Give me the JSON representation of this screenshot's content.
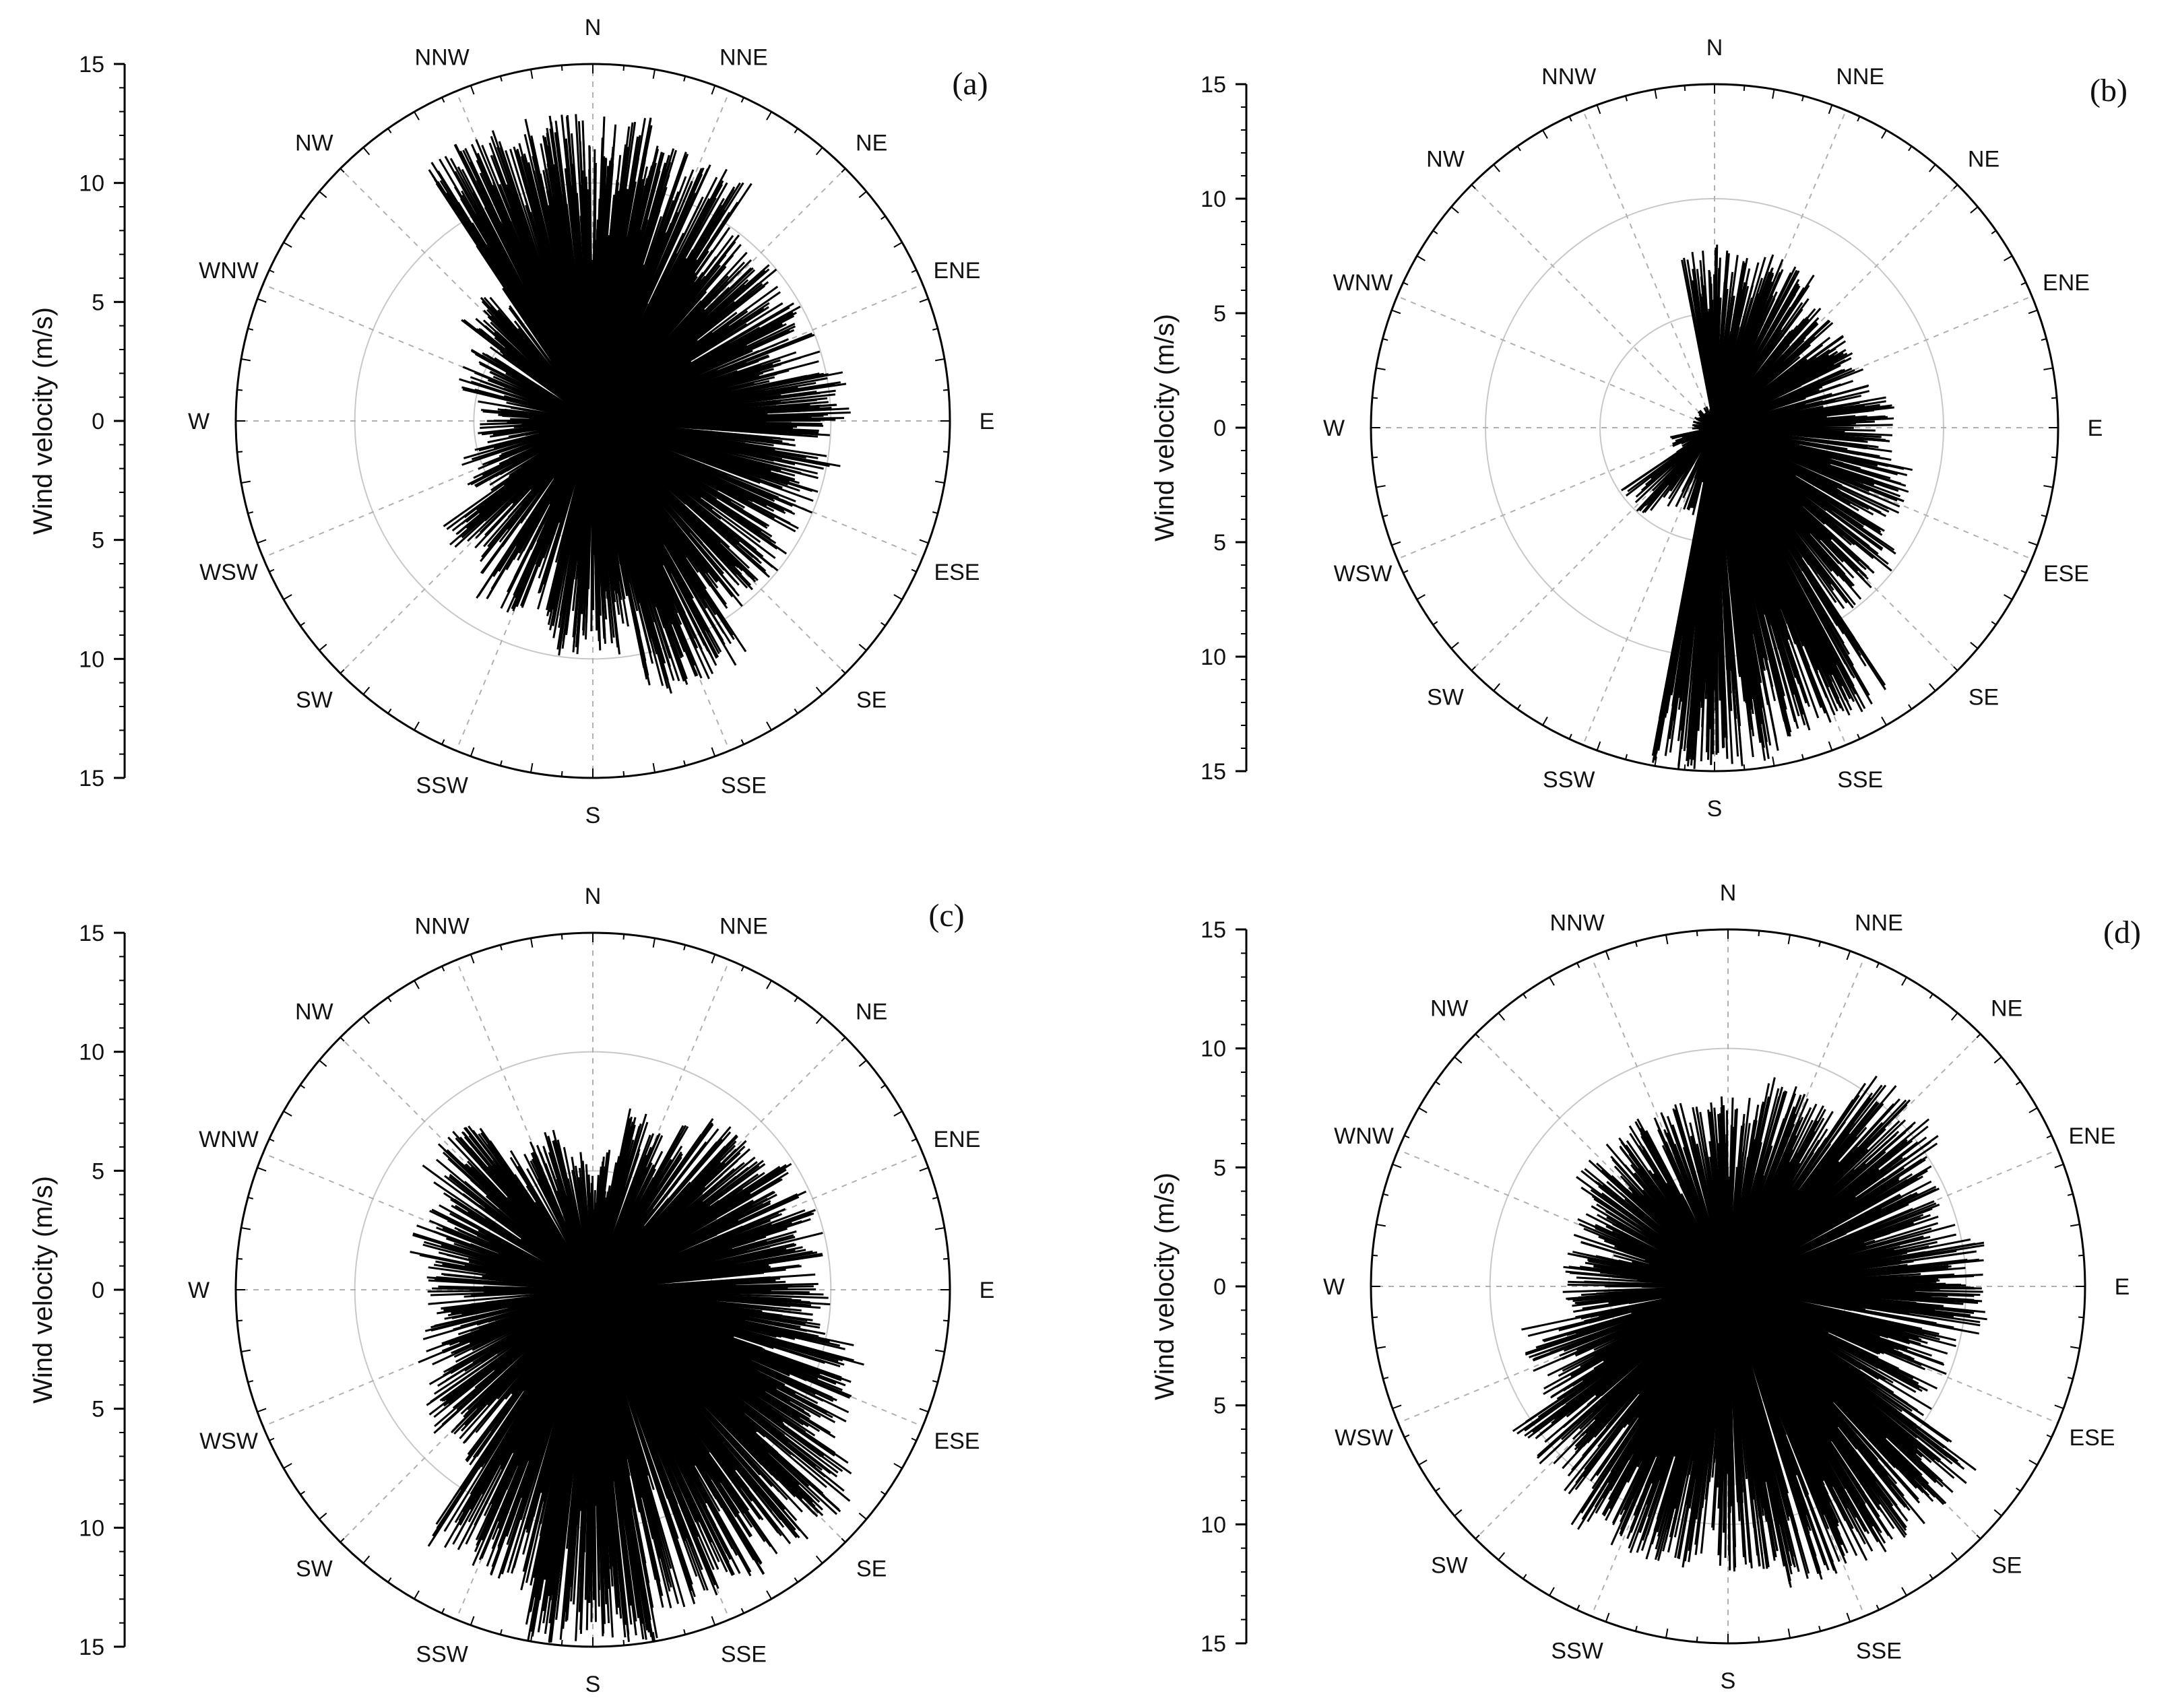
{
  "chart_data": [
    {
      "type": "wind-rose",
      "panel_label": "(a)",
      "ylabel": "Wind velocity (m/s)",
      "rlim": [
        0,
        15
      ],
      "r_ticks": [
        15,
        10,
        5,
        0,
        5,
        10,
        15
      ],
      "grid": true,
      "directions": [
        "N",
        "NNE",
        "NE",
        "ENE",
        "E",
        "ESE",
        "SE",
        "SSE",
        "S",
        "SSW",
        "SW",
        "WSW",
        "W",
        "WNW",
        "NW",
        "NNW"
      ],
      "color": "#000000",
      "sectors": [
        {
          "direction": "N",
          "max_speed": 13
        },
        {
          "direction": "NNE",
          "max_speed": 12
        },
        {
          "direction": "NE",
          "max_speed": 10
        },
        {
          "direction": "ENE",
          "max_speed": 10
        },
        {
          "direction": "E",
          "max_speed": 11
        },
        {
          "direction": "ESE",
          "max_speed": 10
        },
        {
          "direction": "SE",
          "max_speed": 10
        },
        {
          "direction": "SSE",
          "max_speed": 12
        },
        {
          "direction": "S",
          "max_speed": 10
        },
        {
          "direction": "SSW",
          "max_speed": 9
        },
        {
          "direction": "SW",
          "max_speed": 8
        },
        {
          "direction": "WSW",
          "max_speed": 6
        },
        {
          "direction": "W",
          "max_speed": 5
        },
        {
          "direction": "WNW",
          "max_speed": 6
        },
        {
          "direction": "NW",
          "max_speed": 7
        },
        {
          "direction": "NNW",
          "max_speed": 13
        }
      ]
    },
    {
      "type": "wind-rose",
      "panel_label": "(b)",
      "ylabel": "Wind velocity (m/s)",
      "rlim": [
        0,
        15
      ],
      "r_ticks": [
        15,
        10,
        5,
        0,
        5,
        10,
        15
      ],
      "grid": true,
      "directions": [
        "N",
        "NNE",
        "NE",
        "ENE",
        "E",
        "ESE",
        "SE",
        "SSE",
        "S",
        "SSW",
        "SW",
        "WSW",
        "W",
        "WNW",
        "NW",
        "NNW"
      ],
      "color": "#000000",
      "sectors": [
        {
          "direction": "N",
          "max_speed": 8
        },
        {
          "direction": "NNE",
          "max_speed": 8
        },
        {
          "direction": "NE",
          "max_speed": 7
        },
        {
          "direction": "ENE",
          "max_speed": 7
        },
        {
          "direction": "E",
          "max_speed": 8
        },
        {
          "direction": "ESE",
          "max_speed": 9
        },
        {
          "direction": "SE",
          "max_speed": 10
        },
        {
          "direction": "SSE",
          "max_speed": 14
        },
        {
          "direction": "S",
          "max_speed": 15
        },
        {
          "direction": "SSW",
          "max_speed": 4
        },
        {
          "direction": "SW",
          "max_speed": 5
        },
        {
          "direction": "WSW",
          "max_speed": 2
        },
        {
          "direction": "W",
          "max_speed": 1
        },
        {
          "direction": "WNW",
          "max_speed": 1
        },
        {
          "direction": "NW",
          "max_speed": 1
        },
        {
          "direction": "NNW",
          "max_speed": 1
        }
      ]
    },
    {
      "type": "wind-rose",
      "panel_label": "(c)",
      "ylabel": "Wind velocity (m/s)",
      "rlim": [
        0,
        15
      ],
      "r_ticks": [
        15,
        10,
        5,
        0,
        5,
        10,
        15
      ],
      "grid": true,
      "directions": [
        "N",
        "NNE",
        "NE",
        "ENE",
        "E",
        "ESE",
        "SE",
        "SSE",
        "S",
        "SSW",
        "SW",
        "WSW",
        "W",
        "WNW",
        "NW",
        "NNW"
      ],
      "color": "#000000",
      "sectors": [
        {
          "direction": "N",
          "max_speed": 6
        },
        {
          "direction": "NNE",
          "max_speed": 8
        },
        {
          "direction": "NE",
          "max_speed": 9
        },
        {
          "direction": "ENE",
          "max_speed": 10
        },
        {
          "direction": "E",
          "max_speed": 10
        },
        {
          "direction": "ESE",
          "max_speed": 12
        },
        {
          "direction": "SE",
          "max_speed": 14
        },
        {
          "direction": "SSE",
          "max_speed": 14
        },
        {
          "direction": "S",
          "max_speed": 15
        },
        {
          "direction": "SSW",
          "max_speed": 13
        },
        {
          "direction": "SW",
          "max_speed": 9
        },
        {
          "direction": "WSW",
          "max_speed": 8
        },
        {
          "direction": "W",
          "max_speed": 7
        },
        {
          "direction": "WNW",
          "max_speed": 8
        },
        {
          "direction": "NW",
          "max_speed": 9
        },
        {
          "direction": "NNW",
          "max_speed": 7
        }
      ]
    },
    {
      "type": "wind-rose",
      "panel_label": "(d)",
      "ylabel": "Wind velocity (m/s)",
      "rlim": [
        0,
        15
      ],
      "r_ticks": [
        15,
        10,
        5,
        0,
        5,
        10,
        15
      ],
      "grid": true,
      "directions": [
        "N",
        "NNE",
        "NE",
        "ENE",
        "E",
        "ESE",
        "SE",
        "SSE",
        "S",
        "SSW",
        "SW",
        "WSW",
        "W",
        "WNW",
        "NW",
        "NNW"
      ],
      "color": "#000000",
      "sectors": [
        {
          "direction": "N",
          "max_speed": 8
        },
        {
          "direction": "NNE",
          "max_speed": 9
        },
        {
          "direction": "NE",
          "max_speed": 11
        },
        {
          "direction": "ENE",
          "max_speed": 10
        },
        {
          "direction": "E",
          "max_speed": 11
        },
        {
          "direction": "ESE",
          "max_speed": 10
        },
        {
          "direction": "SE",
          "max_speed": 13
        },
        {
          "direction": "SSE",
          "max_speed": 13
        },
        {
          "direction": "S",
          "max_speed": 12
        },
        {
          "direction": "SSW",
          "max_speed": 12
        },
        {
          "direction": "SW",
          "max_speed": 11
        },
        {
          "direction": "WSW",
          "max_speed": 9
        },
        {
          "direction": "W",
          "max_speed": 7
        },
        {
          "direction": "WNW",
          "max_speed": 7
        },
        {
          "direction": "NW",
          "max_speed": 8
        },
        {
          "direction": "NNW",
          "max_speed": 8
        }
      ]
    }
  ]
}
